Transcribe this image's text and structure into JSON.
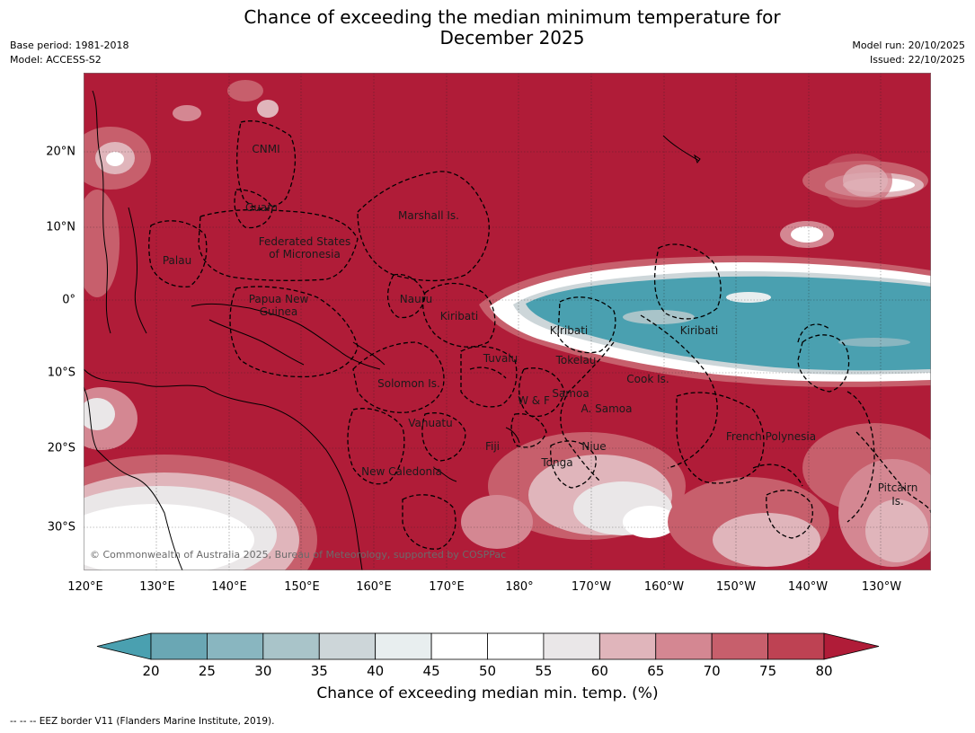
{
  "header": {
    "title_line1": "Chance of exceeding the median minimum temperature for",
    "title_line2": "December 2025",
    "base_period": "Base period: 1981-2018",
    "model": "Model: ACCESS-S2",
    "model_run": "Model run: 20/10/2025",
    "issued": "Issued: 22/10/2025"
  },
  "axes": {
    "latitudes": [
      "20°N",
      "10°N",
      "0°",
      "10°S",
      "20°S",
      "30°S"
    ],
    "longitudes": [
      "120°E",
      "130°E",
      "140°E",
      "150°E",
      "160°E",
      "170°E",
      "180°",
      "170°W",
      "160°W",
      "150°W",
      "140°W",
      "130°W"
    ]
  },
  "map": {
    "labels": {
      "cnmi": "CNMI",
      "guam": "Guam",
      "marshall": "Marshall Is.",
      "fsm_line1": "Federated States",
      "fsm_line2": "of Micronesia",
      "palau": "Palau",
      "png_line1": "Papua New",
      "png_line2": "Guinea",
      "nauru": "Nauru",
      "kiribati_west": "Kiribati",
      "kiribati_central": "Kiribati",
      "kiribati_east": "Kiribati",
      "tuvalu": "Tuvalu",
      "tokelau": "Tokelau",
      "cook": "Cook Is.",
      "solomon": "Solomon Is.",
      "samoa": "Samoa",
      "wf": "W & F",
      "american_samoa": "A. Samoa",
      "vanuatu": "Vanuatu",
      "fiji": "Fiji",
      "niue": "Niue",
      "french_polynesia": "French Polynesia",
      "tonga": "Tonga",
      "new_caledonia": "New Caledonia",
      "pitcairn_line1": "Pitcairn",
      "pitcairn_line2": "Is."
    },
    "copyright": "© Commonwealth of Australia 2025, Bureau of Meteorology, supported by COSPPac"
  },
  "colorbar": {
    "ticks": [
      "20",
      "25",
      "30",
      "35",
      "40",
      "45",
      "50",
      "55",
      "60",
      "65",
      "70",
      "75",
      "80"
    ],
    "colors": [
      "#4aa0b0",
      "#6aa7b4",
      "#89b6c0",
      "#a9c4c9",
      "#cdd6d9",
      "#e8eeef",
      "#ffffff",
      "#ffffff",
      "#eae7e8",
      "#e0b5bb",
      "#d48792",
      "#c75f6c",
      "#be4253",
      "#b01c38"
    ],
    "title": "Chance of exceeding median min. temp. (%)"
  },
  "footnote": "--  --  -- EEZ border V11 (Flanders Marine Institute, 2019)."
}
